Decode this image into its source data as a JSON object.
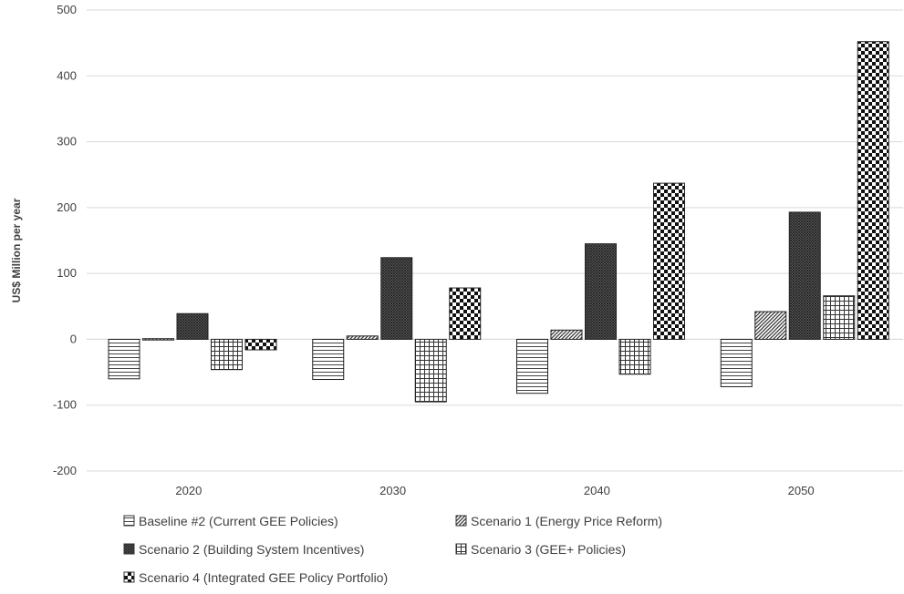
{
  "chart_data": {
    "type": "bar",
    "title": "",
    "xlabel": "",
    "ylabel": "US$ Million per year",
    "ylim": [
      -200,
      500
    ],
    "yticks": [
      -200,
      -100,
      0,
      100,
      200,
      300,
      400,
      500
    ],
    "grid": true,
    "legend_position": "bottom",
    "categories": [
      "2020",
      "2030",
      "2040",
      "2050"
    ],
    "series": [
      {
        "name": "Baseline #2 (Current GEE Policies)",
        "pattern": "hlines",
        "values": [
          -60,
          -61,
          -82,
          -72
        ]
      },
      {
        "name": "Scenario 1 (Energy Price Reform)",
        "pattern": "diag",
        "values": [
          1,
          5,
          14,
          42
        ]
      },
      {
        "name": "Scenario 2 (Building System Incentives)",
        "pattern": "dense-cross",
        "values": [
          39,
          124,
          145,
          193
        ]
      },
      {
        "name": "Scenario 3 (GEE+ Policies)",
        "pattern": "grid",
        "values": [
          -46,
          -95,
          -53,
          66
        ]
      },
      {
        "name": "Scenario 4 (Integrated GEE Policy Portfolio)",
        "pattern": "checker",
        "values": [
          -16,
          78,
          237,
          452
        ]
      }
    ],
    "colors": {
      "gridline": "#d9d9d9",
      "axis_text": "#404040",
      "bar_stroke": "#222222"
    }
  }
}
